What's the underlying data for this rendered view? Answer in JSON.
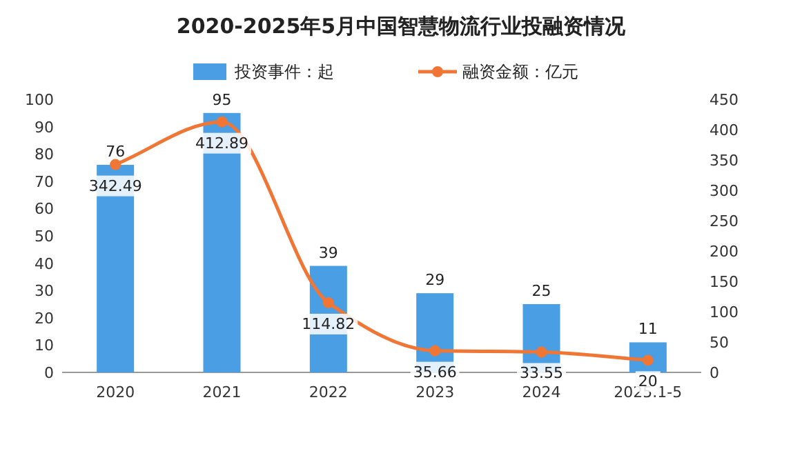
{
  "chart_data": {
    "type": "bar",
    "title": "2020-2025年5月中国智慧物流行业投融资情况",
    "categories": [
      "2020",
      "2021",
      "2022",
      "2023",
      "2024",
      "2025.1-5"
    ],
    "series": [
      {
        "name": "投资事件：起",
        "color": "#4a9ee3",
        "values": [
          76,
          95,
          39,
          29,
          25,
          11
        ]
      },
      {
        "name": "融资金额：亿元",
        "type": "line",
        "axis": "y2",
        "color": "#f07636",
        "values": [
          342.49,
          412.89,
          114.82,
          35.66,
          33.55,
          20
        ]
      }
    ],
    "ylim": [
      0,
      100
    ],
    "yticks": [
      0,
      10,
      20,
      30,
      40,
      50,
      60,
      70,
      80,
      90,
      100
    ],
    "y2lim": [
      0,
      450
    ],
    "y2ticks": [
      0,
      50,
      100,
      150,
      200,
      250,
      300,
      350,
      400,
      450
    ],
    "data_labels": true,
    "legend": "top",
    "marker": "circle",
    "grid": false
  }
}
